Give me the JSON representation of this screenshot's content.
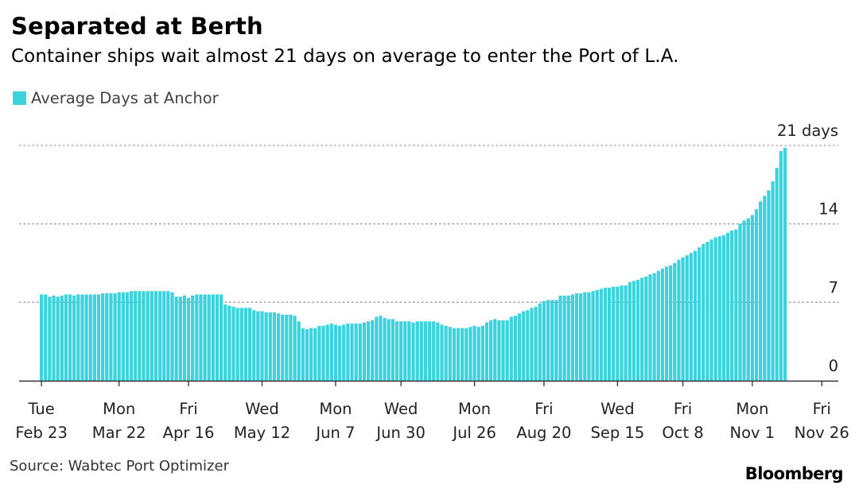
{
  "title": "Separated at Berth",
  "subtitle": "Container ships wait almost 21 days on average to enter the Port of L.A.",
  "legend": {
    "label": "Average Days at Anchor",
    "color": "#3dd3dc"
  },
  "source": "Source: Wabtec Port Optimizer",
  "brand": "Bloomberg",
  "chart_data": {
    "type": "bar",
    "title": "Separated at Berth",
    "subtitle": "Container ships wait almost 21 days on average to enter the Port of L.A.",
    "series": [
      {
        "name": "Average Days at Anchor",
        "color": "#3dd3dc"
      }
    ],
    "ylim": [
      0,
      21
    ],
    "y_ticks": [
      {
        "value": 0,
        "label": "0"
      },
      {
        "value": 7,
        "label": "7"
      },
      {
        "value": 14,
        "label": "14"
      },
      {
        "value": 21,
        "label": "21 days"
      }
    ],
    "x_ticks": [
      {
        "line1": "Tue",
        "line2": "Feb 23",
        "index": 0
      },
      {
        "line1": "Mon",
        "line2": "Mar 22",
        "index": 19
      },
      {
        "line1": "Fri",
        "line2": "Apr 16",
        "index": 36
      },
      {
        "line1": "Wed",
        "line2": "May 12",
        "index": 54
      },
      {
        "line1": "Mon",
        "line2": "Jun 7",
        "index": 72
      },
      {
        "line1": "Wed",
        "line2": "Jun 30",
        "index": 88
      },
      {
        "line1": "Mon",
        "line2": "Jul 26",
        "index": 106
      },
      {
        "line1": "Fri",
        "line2": "Aug 20",
        "index": 123
      },
      {
        "line1": "Wed",
        "line2": "Sep 15",
        "index": 141
      },
      {
        "line1": "Fri",
        "line2": "Oct 8",
        "index": 157
      },
      {
        "line1": "Mon",
        "line2": "Nov 1",
        "index": 174
      },
      {
        "line1": "Fri",
        "line2": "Nov 26",
        "index": 191
      }
    ],
    "grid": true,
    "values": [
      7.7,
      7.7,
      7.5,
      7.6,
      7.5,
      7.6,
      7.7,
      7.7,
      7.6,
      7.7,
      7.7,
      7.7,
      7.7,
      7.7,
      7.7,
      7.8,
      7.8,
      7.8,
      7.8,
      7.9,
      7.9,
      7.9,
      8.0,
      8.0,
      8.0,
      8.0,
      8.0,
      8.0,
      8.0,
      8.0,
      8.0,
      8.0,
      7.9,
      7.5,
      7.5,
      7.6,
      7.4,
      7.6,
      7.7,
      7.7,
      7.7,
      7.7,
      7.7,
      7.7,
      7.7,
      6.8,
      6.7,
      6.6,
      6.5,
      6.5,
      6.5,
      6.5,
      6.3,
      6.2,
      6.2,
      6.1,
      6.1,
      6.1,
      6.0,
      5.9,
      5.9,
      5.9,
      5.8,
      5.3,
      4.7,
      4.6,
      4.7,
      4.7,
      4.9,
      4.9,
      5.0,
      5.1,
      5.0,
      4.9,
      5.0,
      5.1,
      5.1,
      5.1,
      5.1,
      5.2,
      5.3,
      5.4,
      5.7,
      5.8,
      5.6,
      5.5,
      5.5,
      5.3,
      5.3,
      5.3,
      5.3,
      5.2,
      5.3,
      5.3,
      5.3,
      5.3,
      5.3,
      5.2,
      5.0,
      4.9,
      4.8,
      4.7,
      4.7,
      4.7,
      4.7,
      4.8,
      4.9,
      4.8,
      4.9,
      5.2,
      5.4,
      5.5,
      5.4,
      5.4,
      5.4,
      5.7,
      5.8,
      6.0,
      6.2,
      6.3,
      6.5,
      6.6,
      6.9,
      7.1,
      7.2,
      7.2,
      7.2,
      7.6,
      7.6,
      7.6,
      7.7,
      7.8,
      7.8,
      7.9,
      7.9,
      8.0,
      8.1,
      8.2,
      8.3,
      8.3,
      8.4,
      8.4,
      8.5,
      8.5,
      8.8,
      8.9,
      9.0,
      9.2,
      9.3,
      9.5,
      9.6,
      9.8,
      10.0,
      10.2,
      10.3,
      10.5,
      10.8,
      11.0,
      11.2,
      11.4,
      11.6,
      11.9,
      12.2,
      12.4,
      12.6,
      12.8,
      12.9,
      13.0,
      13.2,
      13.4,
      13.5,
      14.0,
      14.3,
      14.5,
      14.8,
      15.3,
      16.0,
      16.5,
      17.0,
      17.8,
      19.0,
      20.5,
      20.8
    ]
  }
}
